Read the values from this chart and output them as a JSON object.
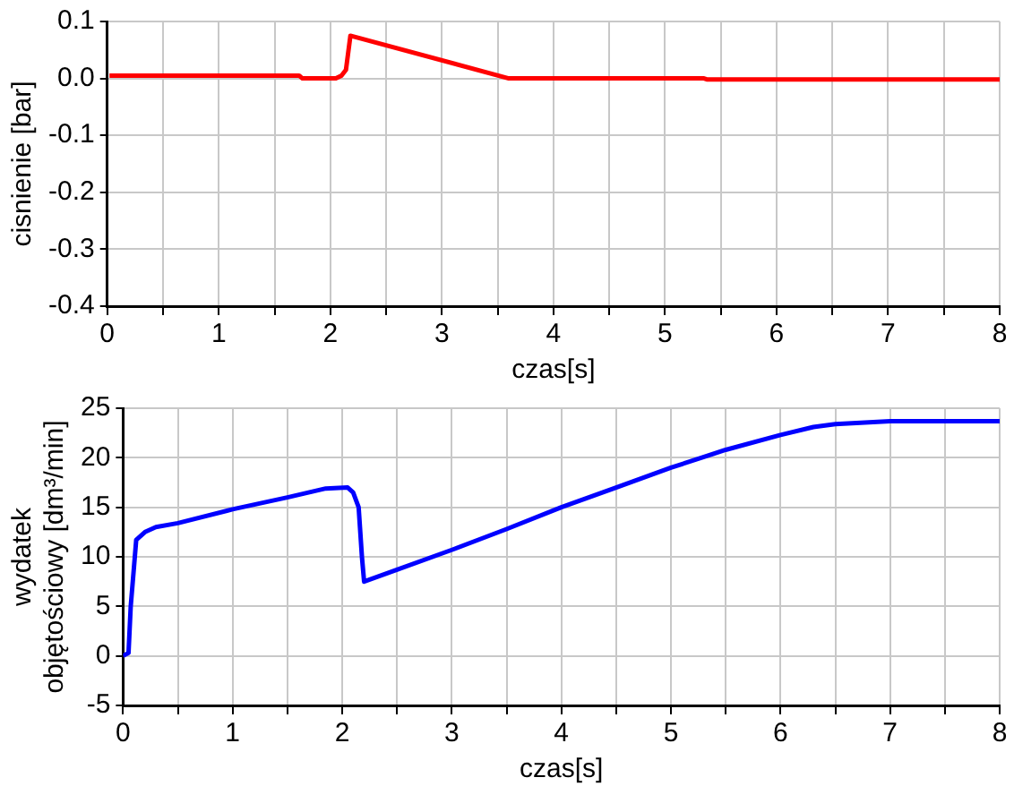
{
  "chart_data": [
    {
      "type": "line",
      "xlabel": "czas[s]",
      "ylabel": "cisnienie [bar]",
      "xlim": [
        0,
        8
      ],
      "ylim": [
        -0.4,
        0.1
      ],
      "xticks": [
        0,
        {
          "value": 0.5,
          "label": null
        },
        1,
        {
          "value": 1.5,
          "label": null
        },
        2,
        {
          "value": 2.5,
          "label": null
        },
        3,
        {
          "value": 3.5,
          "label": null
        },
        4,
        {
          "value": 4.5,
          "label": null
        },
        5,
        {
          "value": 5.5,
          "label": null
        },
        6,
        {
          "value": 6.5,
          "label": null
        },
        7,
        {
          "value": 7.5,
          "label": null
        },
        8
      ],
      "yticks": [
        {
          "value": -0.4,
          "label": "-0.4"
        },
        {
          "value": -0.3,
          "label": "-0.3"
        },
        {
          "value": -0.2,
          "label": "-0.2"
        },
        {
          "value": -0.1,
          "label": "-0.1"
        },
        {
          "value": 0,
          "label": "0.0"
        },
        {
          "value": 0.1,
          "label": "0.1"
        }
      ],
      "grid": true,
      "legend": false,
      "marker": "none",
      "line_style": "solid",
      "series": [
        {
          "color": "#ff0000",
          "x": [
            0.02,
            1.72,
            1.75,
            2.05,
            2.1,
            2.14,
            2.18,
            3.6,
            5.35,
            5.38,
            8
          ],
          "values": [
            0.005,
            0.005,
            0.0,
            0.0,
            0.005,
            0.015,
            0.075,
            0.0,
            0.0,
            -0.002,
            -0.002
          ]
        }
      ]
    },
    {
      "type": "line",
      "xlabel": "czas[s]",
      "ylabel": "wydatek\nobjętościowy [dm³/min]",
      "xlim": [
        0,
        8
      ],
      "ylim": [
        -5,
        25
      ],
      "xticks": [
        0,
        {
          "value": 0.5,
          "label": null
        },
        1,
        {
          "value": 1.5,
          "label": null
        },
        2,
        {
          "value": 2.5,
          "label": null
        },
        3,
        {
          "value": 3.5,
          "label": null
        },
        4,
        {
          "value": 4.5,
          "label": null
        },
        5,
        {
          "value": 5.5,
          "label": null
        },
        6,
        {
          "value": 6.5,
          "label": null
        },
        7,
        {
          "value": 7.5,
          "label": null
        },
        8
      ],
      "yticks": [
        -5,
        0,
        5,
        10,
        15,
        20,
        25
      ],
      "grid": true,
      "legend": false,
      "marker": "none",
      "line_style": "solid",
      "series": [
        {
          "color": "#0000ff",
          "x": [
            0,
            0.05,
            0.07,
            0.1,
            0.12,
            0.2,
            0.3,
            0.5,
            1,
            1.5,
            1.85,
            2.05,
            2.1,
            2.15,
            2.18,
            2.2,
            2.5,
            3,
            3.5,
            4,
            4.5,
            5,
            5.5,
            6,
            6.3,
            6.5,
            7,
            8
          ],
          "values": [
            0,
            0.3,
            5,
            9,
            11.7,
            12.5,
            13,
            13.4,
            14.8,
            16,
            16.9,
            17,
            16.5,
            15,
            10,
            7.5,
            8.7,
            10.7,
            12.8,
            15,
            17,
            19,
            20.8,
            22.3,
            23.1,
            23.4,
            23.7,
            23.7
          ]
        }
      ]
    }
  ]
}
